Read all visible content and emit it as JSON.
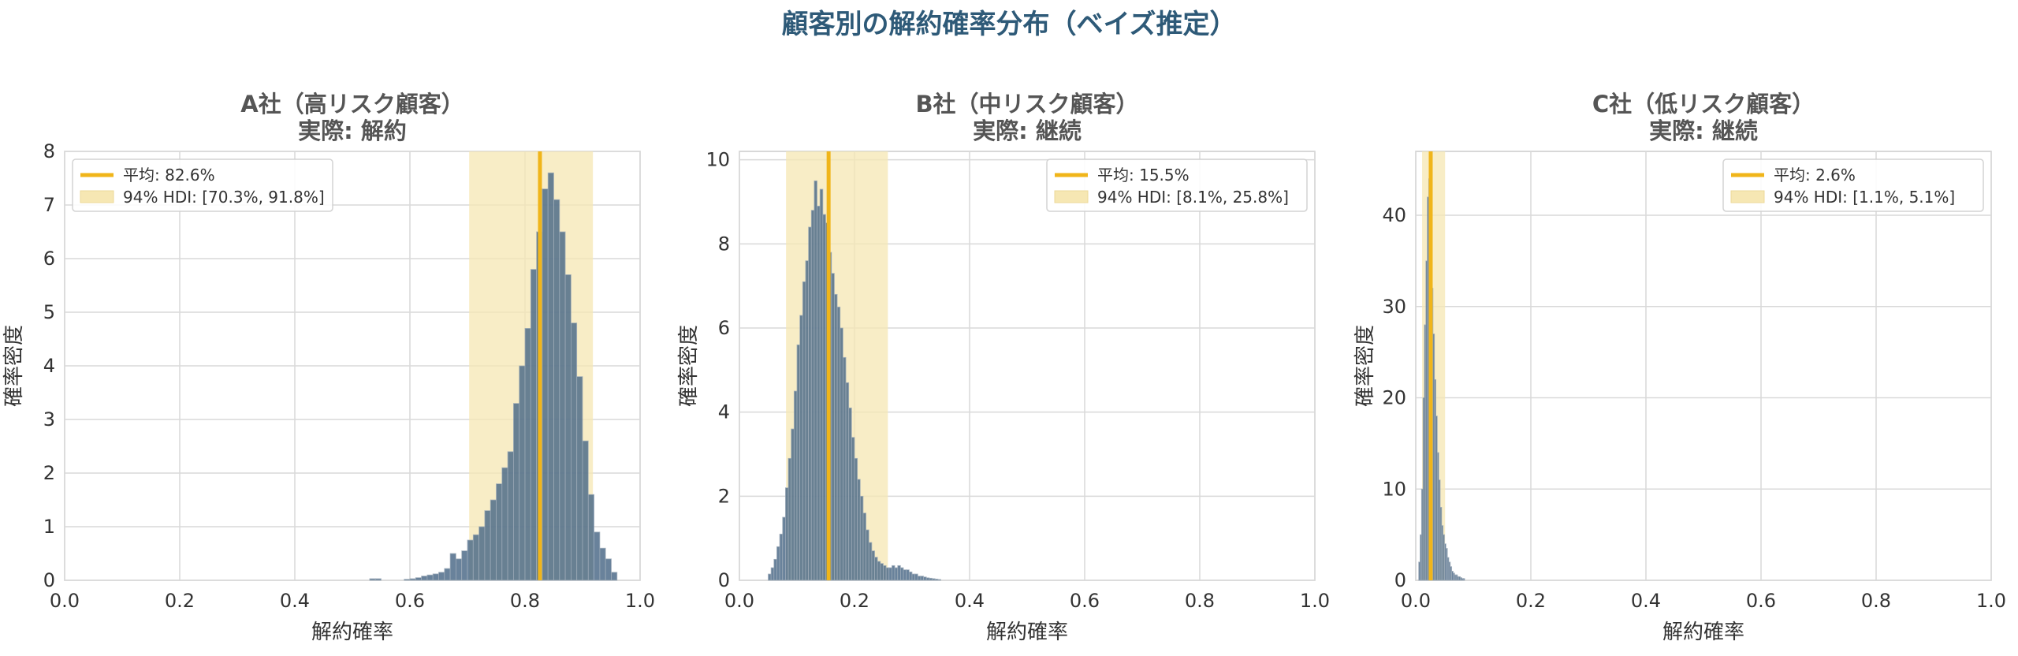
{
  "figure": {
    "title": "顧客別の解約確率分布（ベイズ推定）"
  },
  "colors": {
    "title": "#2e5a78",
    "subtitle": "#555555",
    "bars": "#4f6d8a",
    "bar_edge": "#9aa8b6",
    "mean_line": "#f0b51a",
    "hdi_fill": "#f6e7b3",
    "grid": "#d9d9d9",
    "axis_text": "#333333"
  },
  "chart_data": [
    {
      "type": "bar",
      "title": "A社（高リスク顧客）",
      "subtitle": "実際: 解約",
      "xlabel": "解約確率",
      "ylabel": "確率密度",
      "xlim": [
        0.0,
        1.0
      ],
      "ylim": [
        0,
        8.0
      ],
      "xticks": [
        0.0,
        0.2,
        0.4,
        0.6,
        0.8,
        1.0
      ],
      "yticks": [
        0,
        1,
        2,
        3,
        4,
        5,
        6,
        7,
        8
      ],
      "xtick_labels": [
        "0.0",
        "0.2",
        "0.4",
        "0.6",
        "0.8",
        "1.0"
      ],
      "ytick_labels": [
        "0",
        "1",
        "2",
        "3",
        "4",
        "5",
        "6",
        "7",
        "8"
      ],
      "grid": true,
      "legend_position": "top-left",
      "mean": 0.826,
      "mean_label": "平均: 82.6%",
      "hdi": [
        0.703,
        0.918
      ],
      "hdi_label": "94% HDI: [70.3%, 91.8%]",
      "bin_width": 0.01,
      "bins": [
        [
          0.53,
          0.03
        ],
        [
          0.54,
          0.03
        ],
        [
          0.59,
          0.02
        ],
        [
          0.6,
          0.03
        ],
        [
          0.61,
          0.05
        ],
        [
          0.62,
          0.08
        ],
        [
          0.63,
          0.1
        ],
        [
          0.64,
          0.12
        ],
        [
          0.65,
          0.15
        ],
        [
          0.66,
          0.22
        ],
        [
          0.67,
          0.5
        ],
        [
          0.68,
          0.4
        ],
        [
          0.69,
          0.55
        ],
        [
          0.7,
          0.75
        ],
        [
          0.71,
          0.85
        ],
        [
          0.72,
          1.0
        ],
        [
          0.73,
          1.3
        ],
        [
          0.74,
          1.5
        ],
        [
          0.75,
          1.8
        ],
        [
          0.76,
          2.1
        ],
        [
          0.77,
          2.4
        ],
        [
          0.78,
          3.3
        ],
        [
          0.79,
          4.0
        ],
        [
          0.8,
          4.7
        ],
        [
          0.81,
          5.8
        ],
        [
          0.82,
          6.5
        ],
        [
          0.83,
          7.3
        ],
        [
          0.84,
          7.6
        ],
        [
          0.85,
          7.1
        ],
        [
          0.86,
          6.5
        ],
        [
          0.87,
          5.7
        ],
        [
          0.88,
          4.8
        ],
        [
          0.89,
          3.8
        ],
        [
          0.9,
          2.6
        ],
        [
          0.91,
          1.6
        ],
        [
          0.92,
          0.9
        ],
        [
          0.93,
          0.6
        ],
        [
          0.94,
          0.4
        ],
        [
          0.95,
          0.15
        ]
      ]
    },
    {
      "type": "bar",
      "title": "B社（中リスク顧客）",
      "subtitle": "実際: 継続",
      "xlabel": "解約確率",
      "ylabel": "確率密度",
      "xlim": [
        0.0,
        1.0
      ],
      "ylim": [
        0,
        10.2
      ],
      "xticks": [
        0.0,
        0.2,
        0.4,
        0.6,
        0.8,
        1.0
      ],
      "yticks": [
        0,
        2,
        4,
        6,
        8,
        10
      ],
      "xtick_labels": [
        "0.0",
        "0.2",
        "0.4",
        "0.6",
        "0.8",
        "1.0"
      ],
      "ytick_labels": [
        "0",
        "2",
        "4",
        "6",
        "8",
        "10"
      ],
      "grid": true,
      "legend_position": "top-right",
      "mean": 0.155,
      "mean_label": "平均: 15.5%",
      "hdi": [
        0.081,
        0.258
      ],
      "hdi_label": "94% HDI: [8.1%, 25.8%]",
      "bin_width": 0.005,
      "bins": [
        [
          0.05,
          0.15
        ],
        [
          0.055,
          0.3
        ],
        [
          0.06,
          0.5
        ],
        [
          0.065,
          0.8
        ],
        [
          0.07,
          1.1
        ],
        [
          0.075,
          1.5
        ],
        [
          0.08,
          2.2
        ],
        [
          0.085,
          2.9
        ],
        [
          0.09,
          3.6
        ],
        [
          0.095,
          4.5
        ],
        [
          0.1,
          5.6
        ],
        [
          0.105,
          6.3
        ],
        [
          0.11,
          7.1
        ],
        [
          0.115,
          7.6
        ],
        [
          0.12,
          8.4
        ],
        [
          0.125,
          8.8
        ],
        [
          0.13,
          9.5
        ],
        [
          0.135,
          8.9
        ],
        [
          0.14,
          9.3
        ],
        [
          0.145,
          8.7
        ],
        [
          0.15,
          8.5
        ],
        [
          0.155,
          7.8
        ],
        [
          0.16,
          7.3
        ],
        [
          0.165,
          6.8
        ],
        [
          0.17,
          6.5
        ],
        [
          0.175,
          6.0
        ],
        [
          0.18,
          5.3
        ],
        [
          0.185,
          4.7
        ],
        [
          0.19,
          4.1
        ],
        [
          0.195,
          3.4
        ],
        [
          0.2,
          2.9
        ],
        [
          0.205,
          2.4
        ],
        [
          0.21,
          2.0
        ],
        [
          0.215,
          1.6
        ],
        [
          0.22,
          1.2
        ],
        [
          0.225,
          0.9
        ],
        [
          0.23,
          0.7
        ],
        [
          0.235,
          0.55
        ],
        [
          0.24,
          0.45
        ],
        [
          0.245,
          0.4
        ],
        [
          0.25,
          0.35
        ],
        [
          0.255,
          0.3
        ],
        [
          0.26,
          0.3
        ],
        [
          0.265,
          0.35
        ],
        [
          0.27,
          0.3
        ],
        [
          0.275,
          0.35
        ],
        [
          0.28,
          0.3
        ],
        [
          0.285,
          0.25
        ],
        [
          0.29,
          0.25
        ],
        [
          0.295,
          0.2
        ],
        [
          0.3,
          0.15
        ],
        [
          0.305,
          0.15
        ],
        [
          0.31,
          0.1
        ],
        [
          0.315,
          0.1
        ],
        [
          0.32,
          0.08
        ],
        [
          0.325,
          0.06
        ],
        [
          0.33,
          0.05
        ],
        [
          0.335,
          0.04
        ],
        [
          0.34,
          0.03
        ],
        [
          0.345,
          0.02
        ]
      ]
    },
    {
      "type": "bar",
      "title": "C社（低リスク顧客）",
      "subtitle": "実際: 継続",
      "xlabel": "解約確率",
      "ylabel": "確率密度",
      "xlim": [
        0.0,
        1.0
      ],
      "ylim": [
        0,
        47
      ],
      "xticks": [
        0.0,
        0.2,
        0.4,
        0.6,
        0.8,
        1.0
      ],
      "yticks": [
        0,
        10,
        20,
        30,
        40
      ],
      "xtick_labels": [
        "0.0",
        "0.2",
        "0.4",
        "0.6",
        "0.8",
        "1.0"
      ],
      "ytick_labels": [
        "0",
        "10",
        "20",
        "30",
        "40"
      ],
      "grid": true,
      "legend_position": "top-right",
      "mean": 0.026,
      "mean_label": "平均: 2.6%",
      "hdi": [
        0.011,
        0.051
      ],
      "hdi_label": "94% HDI: [1.1%, 5.1%]",
      "bin_width": 0.0025,
      "bins": [
        [
          0.005,
          2.0
        ],
        [
          0.0075,
          5.0
        ],
        [
          0.01,
          10.0
        ],
        [
          0.0125,
          20.0
        ],
        [
          0.015,
          28.0
        ],
        [
          0.0175,
          35.0
        ],
        [
          0.02,
          42.0
        ],
        [
          0.0225,
          44.0
        ],
        [
          0.025,
          40.0
        ],
        [
          0.0275,
          32.0
        ],
        [
          0.03,
          27.0
        ],
        [
          0.0325,
          22.0
        ],
        [
          0.035,
          18.0
        ],
        [
          0.0375,
          14.0
        ],
        [
          0.04,
          11.0
        ],
        [
          0.0425,
          8.0
        ],
        [
          0.045,
          6.0
        ],
        [
          0.0475,
          5.0
        ],
        [
          0.05,
          4.0
        ],
        [
          0.0525,
          3.5
        ],
        [
          0.055,
          2.5
        ],
        [
          0.0575,
          2.0
        ],
        [
          0.06,
          1.5
        ],
        [
          0.0625,
          1.0
        ],
        [
          0.065,
          0.8
        ],
        [
          0.0675,
          0.6
        ],
        [
          0.07,
          0.6
        ],
        [
          0.0725,
          0.4
        ],
        [
          0.075,
          0.4
        ],
        [
          0.0775,
          0.3
        ],
        [
          0.08,
          0.2
        ],
        [
          0.0825,
          0.2
        ]
      ]
    }
  ]
}
